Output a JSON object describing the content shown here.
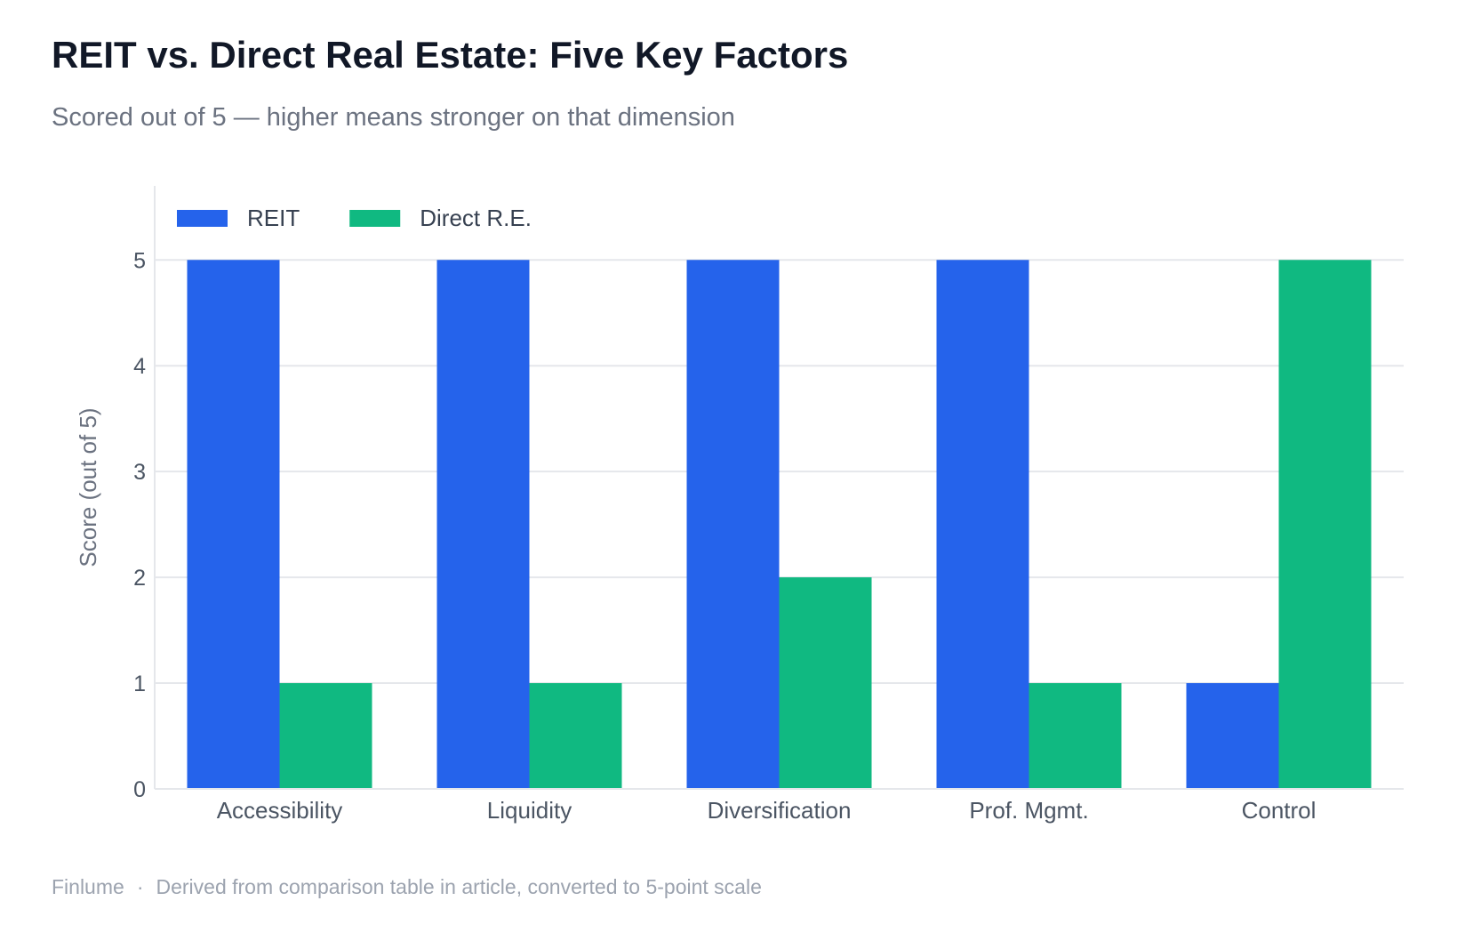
{
  "header": {
    "title": "REIT vs. Direct Real Estate: Five Key Factors",
    "subtitle": "Scored out of 5 — higher means stronger on that dimension"
  },
  "footer": {
    "brand": "Finlume",
    "separator": "·",
    "note": "Derived from comparison table in article, converted to 5-point scale"
  },
  "chart_data": {
    "type": "bar",
    "title": "REIT vs. Direct Real Estate: Five Key Factors",
    "subtitle": "Scored out of 5 — higher means stronger on that dimension",
    "xlabel": "",
    "ylabel": "Score (out of 5)",
    "categories": [
      "Accessibility",
      "Liquidity",
      "Diversification",
      "Prof. Mgmt.",
      "Control"
    ],
    "series": [
      {
        "name": "REIT",
        "values": [
          5,
          5,
          5,
          5,
          1
        ],
        "color": "#2563eb"
      },
      {
        "name": "Direct R.E.",
        "values": [
          1,
          1,
          2,
          1,
          5
        ],
        "color": "#10b981"
      }
    ],
    "ylim": [
      0,
      5.7
    ],
    "yticks": [
      0,
      1,
      2,
      3,
      4,
      5
    ],
    "grid": true,
    "legend": "top-left"
  }
}
